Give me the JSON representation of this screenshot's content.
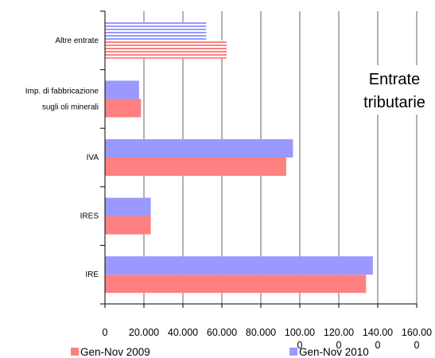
{
  "chart_data": {
    "type": "bar",
    "orientation": "horizontal",
    "title": "Entrate tributarie",
    "title_lines": [
      "Entrate",
      "tributarie"
    ],
    "categories": [
      {
        "label_lines": [
          "IRE"
        ]
      },
      {
        "label_lines": [
          "IRES"
        ]
      },
      {
        "label_lines": [
          "IVA"
        ]
      },
      {
        "label_lines": [
          "Imp. di fabbricazione",
          "sugli oli minerali"
        ]
      },
      {
        "label_lines": [
          "Altre entrate"
        ]
      }
    ],
    "series": [
      {
        "name": "Gen-Nov 2009",
        "color": "#ff8080",
        "values": [
          134000,
          23500,
          93000,
          18500,
          62500
        ]
      },
      {
        "name": "Gen-Nov 2010",
        "color": "#9999ff",
        "values": [
          137500,
          23500,
          96500,
          17500,
          52000
        ]
      }
    ],
    "xlim": [
      0,
      160000
    ],
    "x_tick_lines": [
      [
        "0"
      ],
      [
        "20.000"
      ],
      [
        "40.000"
      ],
      [
        "60.000"
      ],
      [
        "80.000"
      ],
      [
        "100.00",
        "0"
      ],
      [
        "120.00",
        "0"
      ],
      [
        "140.00",
        "0"
      ],
      [
        "160.00",
        "0"
      ]
    ],
    "xlabel": "",
    "ylabel": "",
    "grid": "vertical",
    "legend_position": "bottom",
    "striped_category": "Altre entrate"
  }
}
